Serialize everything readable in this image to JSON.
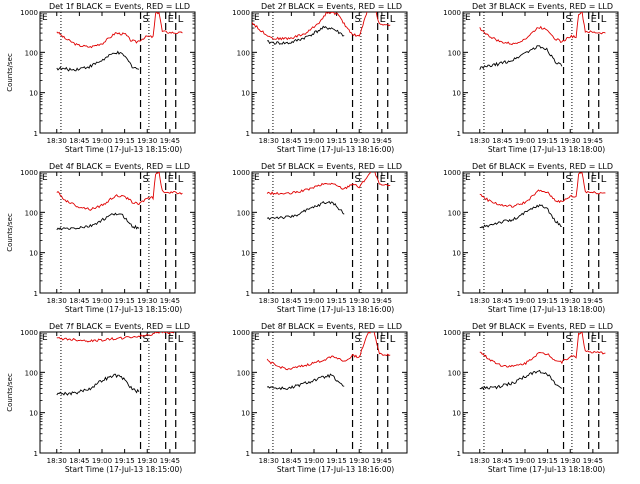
{
  "chart_data": [
    {
      "title": "Det 1f BLACK = Events, RED = LLD",
      "type": "line",
      "ylabel": "Counts/sec",
      "xlabel": "Start Time (17-Jul-13 18:15:00)",
      "yscale": "log",
      "ylim": [
        1,
        1000
      ],
      "x_ticks": [
        "18:30",
        "18:45",
        "19:00",
        "19:15",
        "19:30",
        "19:45"
      ],
      "markers": [
        "S",
        "E",
        "L"
      ],
      "series": [
        {
          "color": "red",
          "values": [
            [
              18.3,
              330
            ],
            [
              18.4,
              220
            ],
            [
              18.55,
              150
            ],
            [
              18.7,
              135
            ],
            [
              18.85,
              170
            ],
            [
              19.0,
              300
            ],
            [
              19.12,
              280
            ],
            [
              19.18,
              200
            ],
            [
              19.25,
              180
            ],
            [
              19.38,
              250
            ],
            [
              19.45,
              240
            ],
            [
              19.48,
              900
            ],
            [
              19.52,
              1000
            ],
            [
              19.56,
              330
            ],
            [
              19.65,
              310
            ],
            [
              19.8,
              300
            ]
          ]
        },
        {
          "color": "black",
          "values": [
            [
              18.3,
              40
            ],
            [
              18.5,
              37
            ],
            [
              18.7,
              45
            ],
            [
              18.85,
              65
            ],
            [
              19.0,
              100
            ],
            [
              19.1,
              85
            ],
            [
              19.2,
              45
            ],
            [
              19.28,
              38
            ]
          ]
        }
      ]
    },
    {
      "title": "Det 2f BLACK = Events, RED = LLD",
      "type": "line",
      "ylabel": "",
      "xlabel": "Start Time (17-Jul-13 18:16:00)",
      "yscale": "log",
      "ylim": [
        1,
        1000
      ],
      "x_ticks": [
        "18:30",
        "18:45",
        "19:00",
        "19:15",
        "19:30",
        "19:45"
      ],
      "markers": [
        "S",
        "E",
        "L"
      ],
      "series": [
        {
          "color": "red",
          "values": [
            [
              18.1,
              550
            ],
            [
              18.2,
              350
            ],
            [
              18.35,
              220
            ],
            [
              18.55,
              220
            ],
            [
              18.75,
              300
            ],
            [
              18.9,
              550
            ],
            [
              19.0,
              1000
            ],
            [
              19.12,
              900
            ],
            [
              19.2,
              500
            ],
            [
              19.3,
              280
            ],
            [
              19.38,
              250
            ],
            [
              19.48,
              1100
            ],
            [
              19.55,
              1800
            ],
            [
              19.62,
              500
            ],
            [
              19.75,
              480
            ]
          ]
        },
        {
          "color": "black",
          "values": [
            [
              18.28,
              180
            ],
            [
              18.4,
              170
            ],
            [
              18.55,
              170
            ],
            [
              18.75,
              240
            ],
            [
              18.95,
              400
            ],
            [
              19.05,
              400
            ],
            [
              19.15,
              300
            ],
            [
              19.2,
              260
            ]
          ]
        }
      ]
    },
    {
      "title": "Det 3f BLACK = Events, RED = LLD",
      "type": "line",
      "ylabel": "",
      "xlabel": "Start Time (17-Jul-13 18:18:00)",
      "yscale": "log",
      "ylim": [
        1,
        1000
      ],
      "x_ticks": [
        "18:30",
        "18:45",
        "19:00",
        "19:15",
        "19:30",
        "19:45"
      ],
      "markers": [
        "S",
        "E",
        "L"
      ],
      "series": [
        {
          "color": "red",
          "values": [
            [
              18.3,
              400
            ],
            [
              18.4,
              260
            ],
            [
              18.55,
              180
            ],
            [
              18.7,
              160
            ],
            [
              18.85,
              220
            ],
            [
              19.0,
              420
            ],
            [
              19.1,
              380
            ],
            [
              19.2,
              220
            ],
            [
              19.28,
              180
            ],
            [
              19.38,
              250
            ],
            [
              19.45,
              240
            ],
            [
              19.48,
              900
            ],
            [
              19.52,
              1000
            ],
            [
              19.56,
              330
            ],
            [
              19.65,
              310
            ],
            [
              19.8,
              300
            ]
          ]
        },
        {
          "color": "black",
          "values": [
            [
              18.3,
              40
            ],
            [
              18.5,
              50
            ],
            [
              18.7,
              65
            ],
            [
              18.85,
              100
            ],
            [
              19.0,
              140
            ],
            [
              19.1,
              120
            ],
            [
              19.2,
              60
            ],
            [
              19.28,
              45
            ]
          ]
        }
      ]
    },
    {
      "title": "Det 4f BLACK = Events, RED = LLD",
      "type": "line",
      "ylabel": "Counts/sec",
      "xlabel": "Start Time (17-Jul-13 18:15:00)",
      "yscale": "log",
      "ylim": [
        1,
        1000
      ],
      "x_ticks": [
        "18:30",
        "18:45",
        "19:00",
        "19:15",
        "19:30",
        "19:45"
      ],
      "markers": [
        "S",
        "E",
        "L"
      ],
      "series": [
        {
          "color": "red",
          "values": [
            [
              18.3,
              330
            ],
            [
              18.4,
              200
            ],
            [
              18.55,
              140
            ],
            [
              18.7,
              120
            ],
            [
              18.85,
              150
            ],
            [
              19.0,
              260
            ],
            [
              19.12,
              240
            ],
            [
              19.2,
              180
            ],
            [
              19.28,
              160
            ],
            [
              19.38,
              230
            ],
            [
              19.45,
              230
            ],
            [
              19.48,
              900
            ],
            [
              19.52,
              1000
            ],
            [
              19.56,
              330
            ],
            [
              19.65,
              310
            ],
            [
              19.8,
              300
            ]
          ]
        },
        {
          "color": "black",
          "values": [
            [
              18.3,
              38
            ],
            [
              18.5,
              40
            ],
            [
              18.7,
              45
            ],
            [
              18.85,
              65
            ],
            [
              19.0,
              95
            ],
            [
              19.1,
              80
            ],
            [
              19.2,
              45
            ],
            [
              19.28,
              40
            ]
          ]
        }
      ]
    },
    {
      "title": "Det 5f BLACK = Events, RED = LLD",
      "type": "line",
      "ylabel": "",
      "xlabel": "Start Time (17-Jul-13 18:16:00)",
      "yscale": "log",
      "ylim": [
        1,
        1000
      ],
      "x_ticks": [
        "18:30",
        "18:45",
        "19:00",
        "19:15",
        "19:30",
        "19:45"
      ],
      "markers": [
        "S",
        "E",
        "L"
      ],
      "series": [
        {
          "color": "red",
          "values": [
            [
              18.28,
              300
            ],
            [
              18.4,
              290
            ],
            [
              18.55,
              290
            ],
            [
              18.75,
              360
            ],
            [
              18.95,
              500
            ],
            [
              19.05,
              520
            ],
            [
              19.15,
              420
            ],
            [
              19.2,
              380
            ],
            [
              19.3,
              520
            ],
            [
              19.38,
              420
            ],
            [
              19.48,
              800
            ],
            [
              19.55,
              1200
            ],
            [
              19.62,
              480
            ],
            [
              19.75,
              460
            ]
          ]
        },
        {
          "color": "black",
          "values": [
            [
              18.28,
              70
            ],
            [
              18.4,
              75
            ],
            [
              18.55,
              75
            ],
            [
              18.75,
              110
            ],
            [
              18.95,
              170
            ],
            [
              19.05,
              180
            ],
            [
              19.15,
              120
            ],
            [
              19.2,
              90
            ]
          ]
        }
      ]
    },
    {
      "title": "Det 6f BLACK = Events, RED = LLD",
      "type": "line",
      "ylabel": "",
      "xlabel": "Start Time (17-Jul-13 18:18:00)",
      "yscale": "log",
      "ylim": [
        1,
        1000
      ],
      "x_ticks": [
        "18:30",
        "18:45",
        "19:00",
        "19:15",
        "19:30",
        "19:45"
      ],
      "markers": [
        "S",
        "E",
        "L"
      ],
      "series": [
        {
          "color": "red",
          "values": [
            [
              18.3,
              280
            ],
            [
              18.4,
              200
            ],
            [
              18.55,
              150
            ],
            [
              18.7,
              140
            ],
            [
              18.85,
              180
            ],
            [
              19.0,
              340
            ],
            [
              19.1,
              320
            ],
            [
              19.2,
              200
            ],
            [
              19.28,
              180
            ],
            [
              19.38,
              250
            ],
            [
              19.45,
              240
            ],
            [
              19.48,
              900
            ],
            [
              19.52,
              1000
            ],
            [
              19.56,
              330
            ],
            [
              19.65,
              310
            ],
            [
              19.8,
              300
            ]
          ]
        },
        {
          "color": "black",
          "values": [
            [
              18.3,
              40
            ],
            [
              18.5,
              55
            ],
            [
              18.7,
              65
            ],
            [
              18.85,
              100
            ],
            [
              19.0,
              150
            ],
            [
              19.1,
              130
            ],
            [
              19.2,
              60
            ],
            [
              19.28,
              45
            ]
          ]
        }
      ]
    },
    {
      "title": "Det 7f BLACK = Events, RED = LLD",
      "type": "line",
      "ylabel": "Counts/sec",
      "xlabel": "Start Time (17-Jul-13 18:15:00)",
      "yscale": "log",
      "ylim": [
        1,
        1000
      ],
      "x_ticks": [
        "18:30",
        "18:45",
        "19:00",
        "19:15",
        "19:30",
        "19:45"
      ],
      "markers": [
        "S",
        "E",
        "L"
      ],
      "series": [
        {
          "color": "red",
          "values": [
            [
              18.3,
              700
            ],
            [
              18.5,
              650
            ],
            [
              18.7,
              600
            ],
            [
              18.9,
              650
            ],
            [
              19.05,
              700
            ],
            [
              19.2,
              750
            ],
            [
              19.32,
              800
            ],
            [
              19.42,
              850
            ],
            [
              19.48,
              1000
            ],
            [
              19.56,
              1000
            ],
            [
              19.7,
              950
            ]
          ]
        },
        {
          "color": "black",
          "values": [
            [
              18.3,
              30
            ],
            [
              18.5,
              30
            ],
            [
              18.7,
              40
            ],
            [
              18.85,
              65
            ],
            [
              19.0,
              85
            ],
            [
              19.1,
              70
            ],
            [
              19.2,
              38
            ],
            [
              19.28,
              33
            ]
          ]
        }
      ]
    },
    {
      "title": "Det 8f BLACK = Events, RED = LLD",
      "type": "line",
      "ylabel": "",
      "xlabel": "Start Time (17-Jul-13 18:16:00)",
      "yscale": "log",
      "ylim": [
        1,
        1000
      ],
      "x_ticks": [
        "18:30",
        "18:45",
        "19:00",
        "19:15",
        "19:30",
        "19:45"
      ],
      "markers": [
        "S",
        "E",
        "L"
      ],
      "series": [
        {
          "color": "red",
          "values": [
            [
              18.28,
              200
            ],
            [
              18.4,
              140
            ],
            [
              18.55,
              120
            ],
            [
              18.75,
              150
            ],
            [
              18.95,
              200
            ],
            [
              19.05,
              250
            ],
            [
              19.15,
              220
            ],
            [
              19.2,
              180
            ],
            [
              19.3,
              260
            ],
            [
              19.38,
              240
            ],
            [
              19.48,
              900
            ],
            [
              19.55,
              1200
            ],
            [
              19.62,
              280
            ],
            [
              19.75,
              270
            ]
          ]
        },
        {
          "color": "black",
          "values": [
            [
              18.28,
              45
            ],
            [
              18.4,
              40
            ],
            [
              18.55,
              40
            ],
            [
              18.75,
              55
            ],
            [
              18.95,
              75
            ],
            [
              19.05,
              85
            ],
            [
              19.15,
              50
            ],
            [
              19.2,
              45
            ]
          ]
        }
      ]
    },
    {
      "title": "Det 9f BLACK = Events, RED = LLD",
      "type": "line",
      "ylabel": "",
      "xlabel": "Start Time (17-Jul-13 18:18:00)",
      "yscale": "log",
      "ylim": [
        1,
        1000
      ],
      "x_ticks": [
        "18:30",
        "18:45",
        "19:00",
        "19:15",
        "19:30",
        "19:45"
      ],
      "markers": [
        "S",
        "E",
        "L"
      ],
      "series": [
        {
          "color": "red",
          "values": [
            [
              18.3,
              330
            ],
            [
              18.4,
              220
            ],
            [
              18.55,
              150
            ],
            [
              18.7,
              140
            ],
            [
              18.85,
              170
            ],
            [
              19.0,
              300
            ],
            [
              19.12,
              280
            ],
            [
              19.2,
              200
            ],
            [
              19.28,
              180
            ],
            [
              19.38,
              250
            ],
            [
              19.45,
              240
            ],
            [
              19.48,
              900
            ],
            [
              19.52,
              1000
            ],
            [
              19.56,
              330
            ],
            [
              19.65,
              310
            ],
            [
              19.8,
              300
            ]
          ]
        },
        {
          "color": "black",
          "values": [
            [
              18.3,
              40
            ],
            [
              18.5,
              42
            ],
            [
              18.7,
              55
            ],
            [
              18.85,
              80
            ],
            [
              19.0,
              110
            ],
            [
              19.1,
              95
            ],
            [
              19.2,
              50
            ],
            [
              19.28,
              40
            ]
          ]
        }
      ]
    }
  ]
}
